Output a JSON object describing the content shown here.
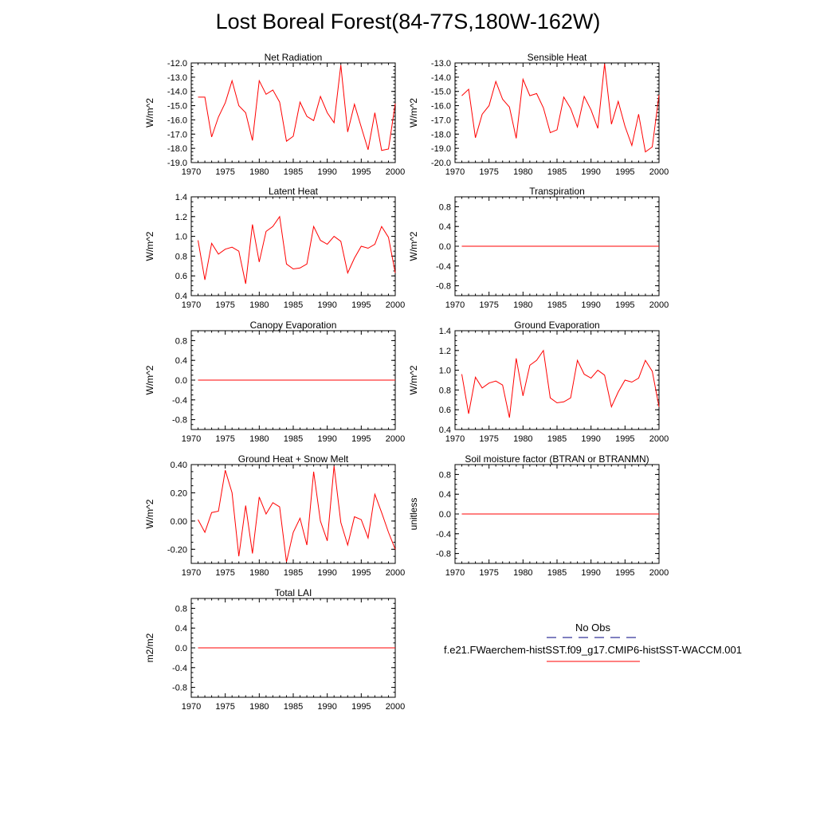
{
  "title": "Lost Boreal Forest(84-77S,180W-162W)",
  "colors": {
    "model_line": "#ff0000",
    "obs_line": "#000080",
    "axis": "#000000"
  },
  "legend": {
    "obs_label": "No Obs",
    "model_label": "f.e21.FWaerchem-histSST.f09_g17.CMIP6-histSST-WACCM.001"
  },
  "chart_data": [
    {
      "type": "line",
      "title": "Net Radiation",
      "ylabel": "W/m^2",
      "xlim": [
        1970,
        2000
      ],
      "ylim": [
        -19.0,
        -12.0
      ],
      "xticks": [
        1970,
        1975,
        1980,
        1985,
        1990,
        1995,
        2000
      ],
      "xticklabels": [
        "1970",
        "1975",
        "1980",
        "1985",
        "1990",
        "1995",
        "2000"
      ],
      "yticks": [
        -19,
        -18,
        -17,
        -16,
        -15,
        -14,
        -13,
        -12
      ],
      "yticklabels": [
        "-19.0",
        "-18.0",
        "-17.0",
        "-16.0",
        "-15.0",
        "-14.0",
        "-13.0",
        "-12.0"
      ],
      "x": [
        1971,
        1972,
        1973,
        1974,
        1975,
        1976,
        1977,
        1978,
        1979,
        1980,
        1981,
        1982,
        1983,
        1984,
        1985,
        1986,
        1987,
        1988,
        1989,
        1990,
        1991,
        1992,
        1993,
        1994,
        1995,
        1996,
        1997,
        1998,
        1999,
        2000
      ],
      "series": [
        {
          "values": [
            -14.4,
            -14.4,
            -17.2,
            -15.8,
            -14.8,
            -13.25,
            -15.0,
            -15.5,
            -17.45,
            -13.25,
            -14.2,
            -13.9,
            -14.75,
            -17.5,
            -17.15,
            -14.75,
            -15.75,
            -16.05,
            -14.35,
            -15.5,
            -16.2,
            -12.15,
            -16.85,
            -14.9,
            -16.5,
            -18.1,
            -15.5,
            -18.15,
            -18.05,
            -14.85
          ]
        }
      ]
    },
    {
      "type": "line",
      "title": "Sensible Heat",
      "ylabel": "W/m^2",
      "xlim": [
        1970,
        2000
      ],
      "ylim": [
        -20.0,
        -13.0
      ],
      "xticks": [
        1970,
        1975,
        1980,
        1985,
        1990,
        1995,
        2000
      ],
      "xticklabels": [
        "1970",
        "1975",
        "1980",
        "1985",
        "1990",
        "1995",
        "2000"
      ],
      "yticks": [
        -20,
        -19,
        -18,
        -17,
        -16,
        -15,
        -14,
        -13
      ],
      "yticklabels": [
        "-20.0",
        "-19.0",
        "-18.0",
        "-17.0",
        "-16.0",
        "-15.0",
        "-14.0",
        "-13.0"
      ],
      "x": [
        1971,
        1972,
        1973,
        1974,
        1975,
        1976,
        1977,
        1978,
        1979,
        1980,
        1981,
        1982,
        1983,
        1984,
        1985,
        1986,
        1987,
        1988,
        1989,
        1990,
        1991,
        1992,
        1993,
        1994,
        1995,
        1996,
        1997,
        1998,
        1999,
        2000
      ],
      "series": [
        {
          "values": [
            -15.3,
            -14.85,
            -18.25,
            -16.6,
            -16.0,
            -14.3,
            -15.55,
            -16.1,
            -18.3,
            -14.15,
            -15.3,
            -15.15,
            -16.15,
            -17.9,
            -17.7,
            -15.4,
            -16.2,
            -17.5,
            -15.35,
            -16.3,
            -17.6,
            -13.05,
            -17.3,
            -15.7,
            -17.45,
            -18.8,
            -16.6,
            -19.25,
            -18.9,
            -15.25
          ]
        }
      ]
    },
    {
      "type": "line",
      "title": "Latent Heat",
      "ylabel": "W/m^2",
      "xlim": [
        1970,
        2000
      ],
      "ylim": [
        0.4,
        1.4
      ],
      "xticks": [
        1970,
        1975,
        1980,
        1985,
        1990,
        1995,
        2000
      ],
      "xticklabels": [
        "1970",
        "1975",
        "1980",
        "1985",
        "1990",
        "1995",
        "2000"
      ],
      "yticks": [
        0.4,
        0.6,
        0.8,
        1.0,
        1.2,
        1.4
      ],
      "yticklabels": [
        "0.4",
        "0.6",
        "0.8",
        "1.0",
        "1.2",
        "1.4"
      ],
      "x": [
        1971,
        1972,
        1973,
        1974,
        1975,
        1976,
        1977,
        1978,
        1979,
        1980,
        1981,
        1982,
        1983,
        1984,
        1985,
        1986,
        1987,
        1988,
        1989,
        1990,
        1991,
        1992,
        1993,
        1994,
        1995,
        1996,
        1997,
        1998,
        1999,
        2000
      ],
      "series": [
        {
          "values": [
            0.96,
            0.56,
            0.93,
            0.82,
            0.87,
            0.89,
            0.85,
            0.52,
            1.12,
            0.74,
            1.05,
            1.1,
            1.2,
            0.72,
            0.67,
            0.68,
            0.72,
            1.1,
            0.96,
            0.92,
            1.0,
            0.95,
            0.63,
            0.78,
            0.9,
            0.88,
            0.92,
            1.1,
            0.99,
            0.63
          ]
        }
      ]
    },
    {
      "type": "line",
      "title": "Transpiration",
      "ylabel": "W/m^2",
      "xlim": [
        1970,
        2000
      ],
      "ylim": [
        -1.0,
        1.0
      ],
      "xticks": [
        1970,
        1975,
        1980,
        1985,
        1990,
        1995,
        2000
      ],
      "xticklabels": [
        "1970",
        "1975",
        "1980",
        "1985",
        "1990",
        "1995",
        "2000"
      ],
      "yticks": [
        -0.8,
        -0.4,
        0.0,
        0.4,
        0.8
      ],
      "yticklabels": [
        "-0.8",
        "-0.4",
        "0.0",
        "0.4",
        "0.8"
      ],
      "x": [
        1971,
        2000
      ],
      "series": [
        {
          "values": [
            0,
            0
          ]
        }
      ]
    },
    {
      "type": "line",
      "title": "Canopy Evaporation",
      "ylabel": "W/m^2",
      "xlim": [
        1970,
        2000
      ],
      "ylim": [
        -1.0,
        1.0
      ],
      "xticks": [
        1970,
        1975,
        1980,
        1985,
        1990,
        1995,
        2000
      ],
      "xticklabels": [
        "1970",
        "1975",
        "1980",
        "1985",
        "1990",
        "1995",
        "2000"
      ],
      "yticks": [
        -0.8,
        -0.4,
        0.0,
        0.4,
        0.8
      ],
      "yticklabels": [
        "-0.8",
        "-0.4",
        "0.0",
        "0.4",
        "0.8"
      ],
      "x": [
        1971,
        2000
      ],
      "series": [
        {
          "values": [
            0,
            0
          ]
        }
      ]
    },
    {
      "type": "line",
      "title": "Ground Evaporation",
      "ylabel": "W/m^2",
      "xlim": [
        1970,
        2000
      ],
      "ylim": [
        0.4,
        1.4
      ],
      "xticks": [
        1970,
        1975,
        1980,
        1985,
        1990,
        1995,
        2000
      ],
      "xticklabels": [
        "1970",
        "1975",
        "1980",
        "1985",
        "1990",
        "1995",
        "2000"
      ],
      "yticks": [
        0.4,
        0.6,
        0.8,
        1.0,
        1.2,
        1.4
      ],
      "yticklabels": [
        "0.4",
        "0.6",
        "0.8",
        "1.0",
        "1.2",
        "1.4"
      ],
      "x": [
        1971,
        1972,
        1973,
        1974,
        1975,
        1976,
        1977,
        1978,
        1979,
        1980,
        1981,
        1982,
        1983,
        1984,
        1985,
        1986,
        1987,
        1988,
        1989,
        1990,
        1991,
        1992,
        1993,
        1994,
        1995,
        1996,
        1997,
        1998,
        1999,
        2000
      ],
      "series": [
        {
          "values": [
            0.96,
            0.56,
            0.93,
            0.82,
            0.87,
            0.89,
            0.85,
            0.52,
            1.12,
            0.74,
            1.05,
            1.1,
            1.2,
            0.72,
            0.67,
            0.68,
            0.72,
            1.1,
            0.96,
            0.92,
            1.0,
            0.95,
            0.63,
            0.78,
            0.9,
            0.88,
            0.92,
            1.1,
            0.99,
            0.63
          ]
        }
      ]
    },
    {
      "type": "line",
      "title": "Ground Heat + Snow Melt",
      "ylabel": "W/m^2",
      "xlim": [
        1970,
        2000
      ],
      "ylim": [
        -0.3,
        0.4
      ],
      "xticks": [
        1970,
        1975,
        1980,
        1985,
        1990,
        1995,
        2000
      ],
      "xticklabels": [
        "1970",
        "1975",
        "1980",
        "1985",
        "1990",
        "1995",
        "2000"
      ],
      "yticks": [
        -0.2,
        0.0,
        0.2,
        0.4
      ],
      "yticklabels": [
        "-0.20",
        "0.00",
        "0.20",
        "0.40"
      ],
      "x": [
        1971,
        1972,
        1973,
        1974,
        1975,
        1976,
        1977,
        1978,
        1979,
        1980,
        1981,
        1982,
        1983,
        1984,
        1985,
        1986,
        1987,
        1988,
        1989,
        1990,
        1991,
        1992,
        1993,
        1994,
        1995,
        1996,
        1997,
        1998,
        1999,
        2000
      ],
      "series": [
        {
          "values": [
            0.01,
            -0.08,
            0.06,
            0.07,
            0.36,
            0.2,
            -0.25,
            0.11,
            -0.23,
            0.17,
            0.05,
            0.13,
            0.1,
            -0.29,
            -0.08,
            0.02,
            -0.17,
            0.35,
            0.0,
            -0.14,
            0.39,
            -0.01,
            -0.17,
            0.03,
            0.01,
            -0.12,
            0.19,
            0.06,
            -0.08,
            -0.2
          ]
        }
      ]
    },
    {
      "type": "line",
      "title": "Soil moisture factor (BTRAN or BTRANMN)",
      "ylabel": "unitless",
      "xlim": [
        1970,
        2000
      ],
      "ylim": [
        -1.0,
        1.0
      ],
      "xticks": [
        1970,
        1975,
        1980,
        1985,
        1990,
        1995,
        2000
      ],
      "xticklabels": [
        "1970",
        "1975",
        "1980",
        "1985",
        "1990",
        "1995",
        "2000"
      ],
      "yticks": [
        -0.8,
        -0.4,
        0.0,
        0.4,
        0.8
      ],
      "yticklabels": [
        "-0.8",
        "-0.4",
        "0.0",
        "0.4",
        "0.8"
      ],
      "x": [
        1971,
        2000
      ],
      "series": [
        {
          "values": [
            0,
            0
          ]
        }
      ]
    },
    {
      "type": "line",
      "title": "Total LAI",
      "ylabel": "m2/m2",
      "xlim": [
        1970,
        2000
      ],
      "ylim": [
        -1.0,
        1.0
      ],
      "xticks": [
        1970,
        1975,
        1980,
        1985,
        1990,
        1995,
        2000
      ],
      "xticklabels": [
        "1970",
        "1975",
        "1980",
        "1985",
        "1990",
        "1995",
        "2000"
      ],
      "yticks": [
        -0.8,
        -0.4,
        0.0,
        0.4,
        0.8
      ],
      "yticklabels": [
        "-0.8",
        "-0.4",
        "0.0",
        "0.4",
        "0.8"
      ],
      "x": [
        1971,
        2000
      ],
      "series": [
        {
          "values": [
            0,
            0
          ]
        }
      ]
    }
  ]
}
